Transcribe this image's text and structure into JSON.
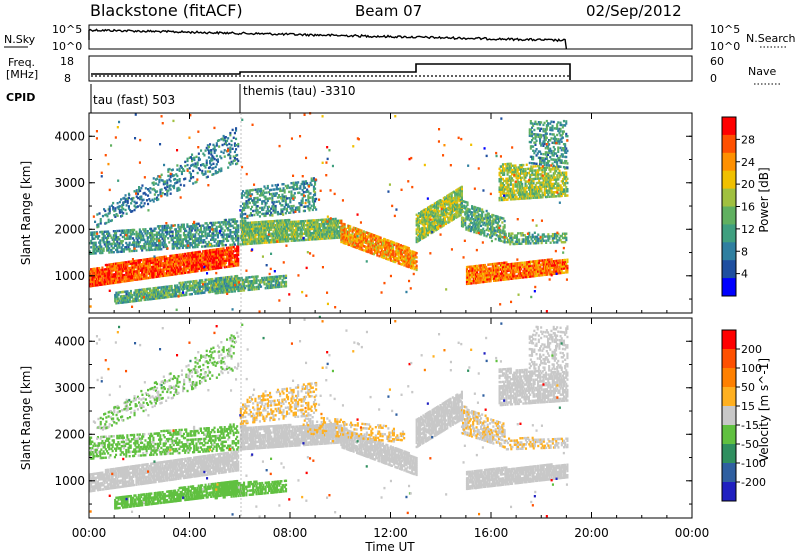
{
  "header": {
    "station": "Blackstone (fitACF)",
    "beam": "Beam 07",
    "date": "02/Sep/2012"
  },
  "left_labels": {
    "nsky": "N.Sky",
    "freq_line1": "Freq.",
    "freq_line2": "[MHz]",
    "cpid": "CPID"
  },
  "right_labels": {
    "nsearch": "N.Search",
    "nave": "Nave"
  },
  "top_ticks": {
    "noise_left": [
      "10^5",
      "10^0"
    ],
    "noise_right": [
      "10^5",
      "10^0"
    ],
    "freq_left": [
      "18",
      "8"
    ],
    "nave_right": [
      "60",
      "0"
    ]
  },
  "cpid_labels": [
    {
      "text": "tau (fast) 503",
      "start_hour": 0
    },
    {
      "text": "themis (tau) -3310",
      "start_hour": 6
    }
  ],
  "time_axis": {
    "label": "Time UT",
    "ticks": [
      "00:00",
      "04:00",
      "08:00",
      "12:00",
      "16:00",
      "20:00",
      "00:00"
    ],
    "range_hours": [
      0,
      24
    ],
    "data_end_hour": 19
  },
  "chart_data": [
    {
      "type": "heatmap",
      "title": "",
      "xlabel": "",
      "ylabel": "Slant Range [km]",
      "xlim": [
        0,
        24
      ],
      "ylim": [
        200,
        4500
      ],
      "yticks": [
        "1000",
        "2000",
        "3000",
        "4000"
      ],
      "colorbar_label": "Power [dB]",
      "colorbar_ticks": [
        "4",
        "8",
        "12",
        "16",
        "20",
        "24",
        "28"
      ],
      "colorbar_range": [
        0,
        30
      ],
      "colors": [
        "#0000ff",
        "#1f4fa0",
        "#2f7fa0",
        "#3f9f7f",
        "#60b060",
        "#a0c040",
        "#f0c000",
        "#ff9000",
        "#ff5000",
        "#ff0000"
      ],
      "bands": [
        {
          "x0": 0.0,
          "x1": 5.9,
          "y0": 750,
          "y1": 1150,
          "y0e": 1200,
          "y1e": 1650,
          "density": 0.85,
          "value": 26
        },
        {
          "x0": 0.0,
          "x1": 5.9,
          "y0": 1450,
          "y1": 1900,
          "y0e": 1650,
          "y1e": 2200,
          "density": 0.5,
          "value": 10
        },
        {
          "x0": 1.0,
          "x1": 5.9,
          "y0": 380,
          "y1": 620,
          "y0e": 700,
          "y1e": 1000,
          "density": 0.7,
          "value": 12
        },
        {
          "x0": 0.2,
          "x1": 5.9,
          "y0": 2000,
          "y1": 2300,
          "y0e": 3400,
          "y1e": 4200,
          "density": 0.25,
          "value": 8
        },
        {
          "x0": 6.0,
          "x1": 10.0,
          "y0": 1650,
          "y1": 2150,
          "y0e": 1800,
          "y1e": 2200,
          "density": 0.8,
          "value": 14
        },
        {
          "x0": 5.0,
          "x1": 7.8,
          "y0": 600,
          "y1": 900,
          "y0e": 750,
          "y1e": 1000,
          "density": 0.6,
          "value": 12
        },
        {
          "x0": 6.0,
          "x1": 9.0,
          "y0": 2200,
          "y1": 2800,
          "y0e": 2400,
          "y1e": 3100,
          "density": 0.35,
          "value": 10
        },
        {
          "x0": 10.0,
          "x1": 13.0,
          "y0": 1700,
          "y1": 2150,
          "y0e": 1100,
          "y1e": 1500,
          "density": 0.75,
          "value": 22
        },
        {
          "x0": 13.0,
          "x1": 14.8,
          "y0": 1700,
          "y1": 2300,
          "y0e": 2300,
          "y1e": 2900,
          "density": 0.8,
          "value": 16
        },
        {
          "x0": 14.8,
          "x1": 16.5,
          "y0": 2000,
          "y1": 2600,
          "y0e": 1700,
          "y1e": 2200,
          "density": 0.55,
          "value": 12
        },
        {
          "x0": 15.0,
          "x1": 19.0,
          "y0": 800,
          "y1": 1200,
          "y0e": 1050,
          "y1e": 1350,
          "density": 0.8,
          "value": 24
        },
        {
          "x0": 16.3,
          "x1": 19.0,
          "y0": 2600,
          "y1": 3400,
          "y0e": 2700,
          "y1e": 3300,
          "density": 0.6,
          "value": 16
        },
        {
          "x0": 16.5,
          "x1": 19.0,
          "y0": 1650,
          "y1": 1900,
          "y0e": 1700,
          "y1e": 1900,
          "density": 0.5,
          "value": 12
        },
        {
          "x0": 17.5,
          "x1": 19.0,
          "y0": 3400,
          "y1": 4300,
          "y0e": 3300,
          "y1e": 4300,
          "density": 0.35,
          "value": 10
        }
      ]
    },
    {
      "type": "heatmap",
      "title": "",
      "xlabel": "Time UT",
      "ylabel": "Slant Range [km]",
      "xlim": [
        0,
        24
      ],
      "ylim": [
        200,
        4500
      ],
      "yticks": [
        "1000",
        "2000",
        "3000",
        "4000"
      ],
      "colorbar_label": "Velocity [m s^-1]",
      "colorbar_ticks": [
        "200",
        "100",
        "50",
        "15",
        "-15",
        "-50",
        "-100",
        "-200"
      ],
      "colorbar_range": [
        -250,
        250
      ],
      "colors": [
        "#2020c0",
        "#2f5fa0",
        "#2f8f5f",
        "#60c040",
        "#c8c8c8",
        "#ffb020",
        "#ff8000",
        "#ff5000",
        "#ff0000"
      ],
      "bands": [
        {
          "x0": 0.0,
          "x1": 5.9,
          "y0": 750,
          "y1": 1150,
          "y0e": 1200,
          "y1e": 1650,
          "density": 0.8,
          "value": 0
        },
        {
          "x0": 0.0,
          "x1": 5.9,
          "y0": 1450,
          "y1": 1900,
          "y0e": 1650,
          "y1e": 2200,
          "density": 0.4,
          "value": -40
        },
        {
          "x0": 1.0,
          "x1": 5.9,
          "y0": 380,
          "y1": 620,
          "y0e": 700,
          "y1e": 1000,
          "density": 0.7,
          "value": -50
        },
        {
          "x0": 0.2,
          "x1": 5.9,
          "y0": 2000,
          "y1": 2300,
          "y0e": 3400,
          "y1e": 4200,
          "density": 0.2,
          "value": -30
        },
        {
          "x0": 6.0,
          "x1": 10.0,
          "y0": 1650,
          "y1": 2150,
          "y0e": 1800,
          "y1e": 2200,
          "density": 0.8,
          "value": 0
        },
        {
          "x0": 5.0,
          "x1": 7.8,
          "y0": 600,
          "y1": 900,
          "y0e": 750,
          "y1e": 1000,
          "density": 0.6,
          "value": -50
        },
        {
          "x0": 6.0,
          "x1": 9.0,
          "y0": 2200,
          "y1": 2800,
          "y0e": 2400,
          "y1e": 3100,
          "density": 0.3,
          "value": 30
        },
        {
          "x0": 10.0,
          "x1": 13.0,
          "y0": 1700,
          "y1": 2150,
          "y0e": 1100,
          "y1e": 1500,
          "density": 0.75,
          "value": 0
        },
        {
          "x0": 8.5,
          "x1": 12.5,
          "y0": 2000,
          "y1": 2400,
          "y0e": 1800,
          "y1e": 2100,
          "density": 0.3,
          "value": 30
        },
        {
          "x0": 13.0,
          "x1": 14.8,
          "y0": 1700,
          "y1": 2300,
          "y0e": 2300,
          "y1e": 2900,
          "density": 0.8,
          "value": 0
        },
        {
          "x0": 14.8,
          "x1": 16.5,
          "y0": 2000,
          "y1": 2600,
          "y0e": 1700,
          "y1e": 2200,
          "density": 0.5,
          "value": 25
        },
        {
          "x0": 15.0,
          "x1": 19.0,
          "y0": 800,
          "y1": 1200,
          "y0e": 1050,
          "y1e": 1350,
          "density": 0.8,
          "value": 0
        },
        {
          "x0": 16.3,
          "x1": 19.0,
          "y0": 2600,
          "y1": 3400,
          "y0e": 2700,
          "y1e": 3300,
          "density": 0.6,
          "value": 0
        },
        {
          "x0": 16.5,
          "x1": 19.0,
          "y0": 1650,
          "y1": 1900,
          "y0e": 1700,
          "y1e": 1900,
          "density": 0.45,
          "value": 25
        },
        {
          "x0": 17.5,
          "x1": 19.0,
          "y0": 3400,
          "y1": 4300,
          "y0e": 3300,
          "y1e": 4300,
          "density": 0.3,
          "value": 0
        }
      ]
    }
  ]
}
